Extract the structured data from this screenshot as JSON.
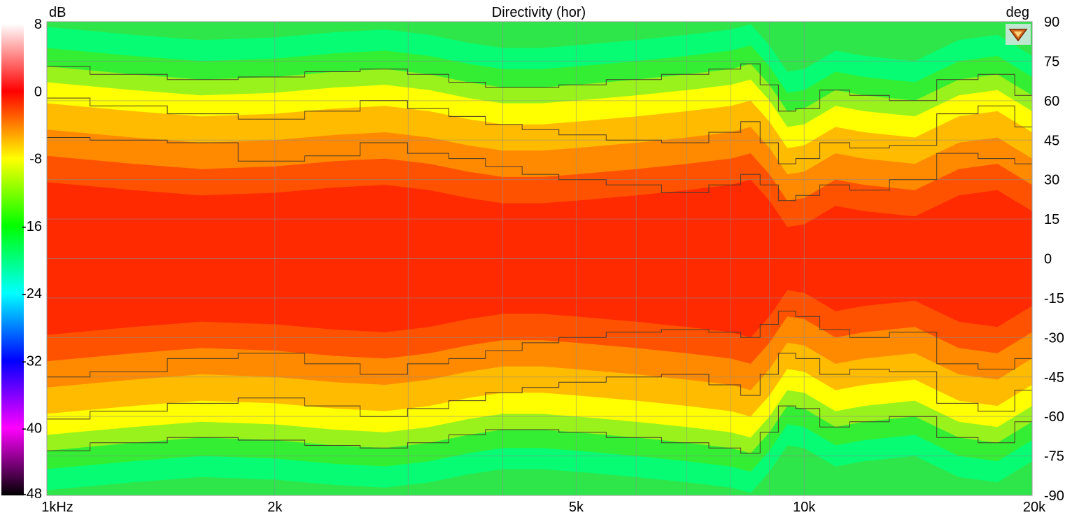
{
  "chart_data": {
    "type": "heatmap",
    "title": "Directivity (hor)",
    "colorbar": {
      "unit": "dB",
      "ticks": [
        "8",
        "0",
        "-8",
        "-16",
        "-24",
        "-32",
        "-40",
        "-48"
      ],
      "range": [
        -48,
        8
      ],
      "colors": [
        "#ffffff",
        "#ff0000",
        "#ffff00",
        "#00ff00",
        "#00ffff",
        "#0000ff",
        "#ff00ff",
        "#000000"
      ]
    },
    "x_axis": {
      "scale": "log",
      "range_hz": [
        1000,
        20000
      ],
      "tick_values_hz": [
        1000,
        2000,
        5000,
        10000,
        20000
      ],
      "tick_labels": [
        "1kHz",
        "2k",
        "5k",
        "10k",
        "20k"
      ]
    },
    "y_axis": {
      "unit": "deg",
      "range": [
        -90,
        90
      ],
      "tick_values": [
        90,
        75,
        60,
        45,
        30,
        15,
        0,
        -15,
        -30,
        -45,
        -60,
        -75,
        -90
      ],
      "tick_labels": [
        "90",
        "75",
        "60",
        "45",
        "30",
        "15",
        "0",
        "-15",
        "-30",
        "-45",
        "-60",
        "-75",
        "-90"
      ]
    },
    "contour_step_db": 3,
    "contour_freqs_hz": [
      1000,
      1300,
      1600,
      2000,
      2400,
      2800,
      3200,
      3600,
      4000,
      4500,
      5000,
      6000,
      7000,
      8000,
      8500,
      9000,
      9500,
      10000,
      11000,
      12000,
      14000,
      16000,
      18000,
      20000
    ],
    "contours_deg": [
      {
        "level_db": -3,
        "upper": [
          46,
          45,
          44,
          37,
          39,
          44,
          40,
          38,
          35,
          32,
          30,
          28,
          25,
          28,
          32,
          28,
          22,
          24,
          28,
          26,
          30,
          40,
          38,
          36
        ],
        "lower": [
          -45,
          -43,
          -38,
          -36,
          -40,
          -44,
          -40,
          -38,
          -35,
          -32,
          -30,
          -28,
          -27,
          -28,
          -30,
          -25,
          -20,
          -22,
          -27,
          -30,
          -28,
          -40,
          -42,
          -38
        ]
      },
      {
        "level_db": -6,
        "upper": [
          61,
          58,
          55,
          53,
          56,
          60,
          57,
          54,
          51,
          49,
          47,
          45,
          44,
          48,
          52,
          44,
          36,
          38,
          44,
          42,
          43,
          55,
          58,
          50
        ]
      },
      {
        "level_db": -9,
        "upper": [
          73,
          70,
          68,
          69,
          71,
          72,
          70,
          67,
          65,
          65,
          66,
          68,
          70,
          72,
          74,
          66,
          56,
          57,
          64,
          62,
          60,
          68,
          70,
          62
        ]
      }
    ]
  }
}
